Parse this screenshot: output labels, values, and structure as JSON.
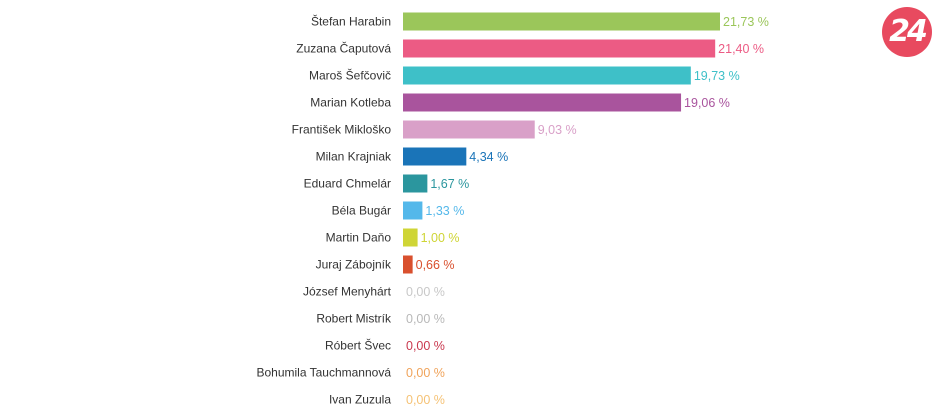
{
  "logo": {
    "text": "24",
    "color": "#e84a5f"
  },
  "chart_data": {
    "type": "bar",
    "orientation": "horizontal",
    "title": "",
    "xlabel": "",
    "ylabel": "",
    "categories": [
      "Štefan Harabin",
      "Zuzana Čaputová",
      "Maroš Šefčovič",
      "Marian Kotleba",
      "František Mikloško",
      "Milan Krajniak",
      "Eduard Chmelár",
      "Béla Bugár",
      "Martin Daňo",
      "Juraj Zábojník",
      "József Menyhárt",
      "Robert Mistrík",
      "Róbert Švec",
      "Bohumila Tauchmannová",
      "Ivan Zuzula"
    ],
    "values": [
      21.73,
      21.4,
      19.73,
      19.06,
      9.03,
      4.34,
      1.67,
      1.33,
      1.0,
      0.66,
      0.0,
      0.0,
      0.0,
      0.0,
      0.0
    ],
    "value_labels": [
      "21,73 %",
      "21,40 %",
      "19,73 %",
      "19,06 %",
      "9,03 %",
      "4,34 %",
      "1,67 %",
      "1,33 %",
      "1,00 %",
      "0,66 %",
      "0,00 %",
      "0,00 %",
      "0,00 %",
      "0,00 %",
      "0,00 %"
    ],
    "colors": [
      "#9bc65a",
      "#ec5b84",
      "#3ec0c8",
      "#a9549d",
      "#d9a0c8",
      "#1a74b8",
      "#2b969e",
      "#54b8ea",
      "#cfd536",
      "#d9502e",
      "#c8c8c8",
      "#b8b8b8",
      "#c9384e",
      "#f0a35a",
      "#f5c275"
    ],
    "xlim": [
      0,
      21.73
    ],
    "grid": false,
    "legend": "none"
  }
}
